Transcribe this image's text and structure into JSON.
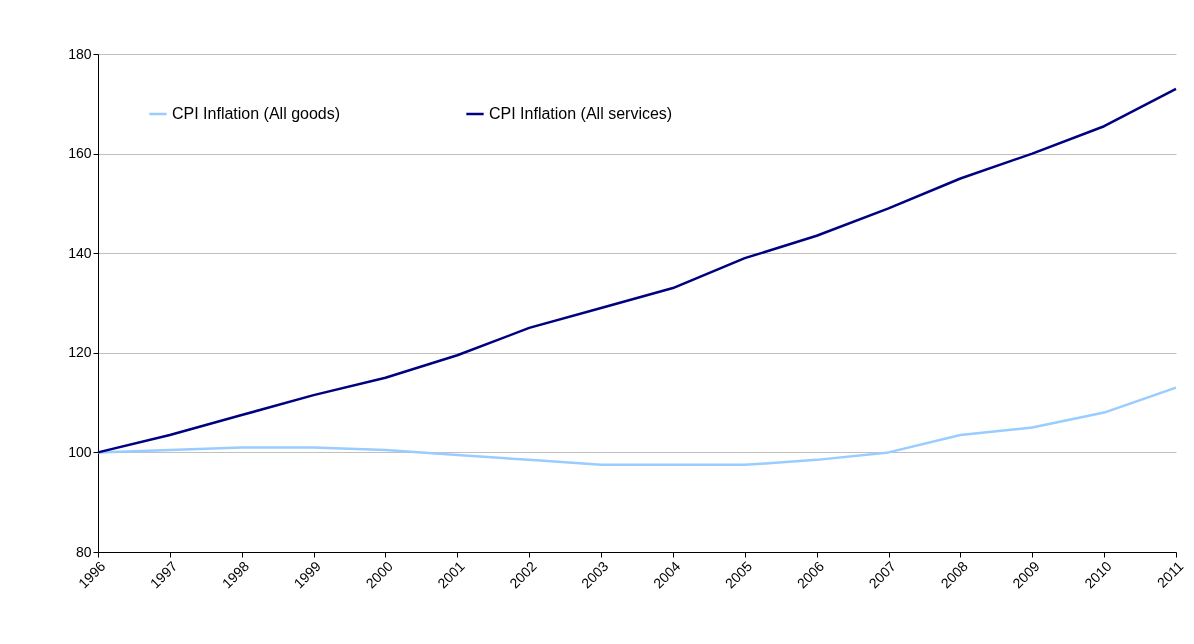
{
  "chart_data": {
    "type": "line",
    "categories": [
      "1996",
      "1997",
      "1998",
      "1999",
      "2000",
      "2001",
      "2002",
      "2003",
      "2004",
      "2005",
      "2006",
      "2007",
      "2008",
      "2009",
      "2010",
      "2011"
    ],
    "series": [
      {
        "name": "CPI Inflation (All goods)",
        "color": "#99ccff",
        "values": [
          100,
          100.5,
          101,
          101,
          100.5,
          99.5,
          98.5,
          97.5,
          97.5,
          97.5,
          98.5,
          100,
          103.5,
          105,
          108,
          113
        ]
      },
      {
        "name": "CPI Inflation (All services)",
        "color": "#000080",
        "values": [
          100,
          103.5,
          107.5,
          111.5,
          115,
          119.5,
          125,
          129,
          133,
          139,
          143.5,
          149,
          155,
          160,
          165.5,
          173
        ]
      }
    ],
    "ylim": [
      80,
      180
    ],
    "yticks": [
      80,
      100,
      120,
      140,
      160,
      180
    ],
    "grid": "y",
    "legend": "top left"
  }
}
